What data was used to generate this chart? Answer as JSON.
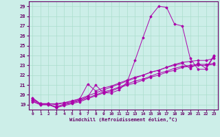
{
  "xlabel": "Windchill (Refroidissement éolien,°C)",
  "background_color": "#cceee8",
  "grid_color": "#aaddcc",
  "line_color": "#aa00aa",
  "xlim": [
    -0.5,
    23.5
  ],
  "ylim": [
    18.5,
    29.5
  ],
  "yticks": [
    19,
    20,
    21,
    22,
    23,
    24,
    25,
    26,
    27,
    28,
    29
  ],
  "xticks": [
    0,
    1,
    2,
    3,
    4,
    5,
    6,
    7,
    8,
    9,
    10,
    11,
    12,
    13,
    14,
    15,
    16,
    17,
    18,
    19,
    20,
    21,
    22,
    23
  ],
  "lines": [
    {
      "x": [
        0,
        1,
        2,
        3,
        4,
        5,
        6,
        7,
        8,
        9,
        10,
        11,
        12,
        13,
        14,
        15,
        16,
        17,
        18,
        19,
        20,
        21,
        22,
        23
      ],
      "y": [
        19.7,
        19.1,
        19.1,
        18.7,
        19.1,
        19.2,
        19.5,
        19.8,
        21.0,
        20.2,
        20.2,
        20.5,
        21.3,
        23.5,
        25.8,
        28.0,
        29.0,
        28.9,
        27.2,
        27.0,
        23.7,
        22.6,
        22.6,
        23.9
      ]
    },
    {
      "x": [
        0,
        1,
        2,
        3,
        4,
        5,
        6,
        7,
        8,
        9,
        10,
        11,
        12,
        13,
        14,
        15,
        16,
        17,
        18,
        19,
        20,
        21,
        22,
        23
      ],
      "y": [
        19.5,
        19.1,
        19.1,
        19.0,
        19.2,
        19.3,
        19.6,
        19.9,
        20.2,
        20.5,
        20.8,
        21.1,
        21.4,
        21.7,
        22.0,
        22.3,
        22.5,
        22.8,
        23.1,
        23.3,
        23.4,
        23.5,
        23.5,
        23.7
      ]
    },
    {
      "x": [
        0,
        1,
        2,
        3,
        4,
        5,
        6,
        7,
        8,
        9,
        10,
        11,
        12,
        13,
        14,
        15,
        16,
        17,
        18,
        19,
        20,
        21,
        22,
        23
      ],
      "y": [
        19.4,
        19.0,
        19.0,
        18.8,
        19.0,
        19.2,
        19.4,
        19.7,
        20.0,
        20.3,
        20.5,
        20.8,
        21.1,
        21.4,
        21.6,
        21.9,
        22.2,
        22.4,
        22.7,
        22.9,
        23.0,
        23.1,
        23.1,
        23.2
      ]
    },
    {
      "x": [
        0,
        1,
        2,
        3,
        4,
        5,
        6,
        7,
        8,
        9,
        10,
        11,
        12,
        13,
        14,
        15,
        16,
        17,
        18,
        19,
        20,
        21,
        22,
        23
      ],
      "y": [
        19.6,
        19.1,
        19.1,
        19.1,
        19.2,
        19.4,
        19.6,
        21.1,
        20.4,
        20.7,
        20.9,
        21.2,
        21.5,
        21.8,
        22.0,
        22.3,
        22.5,
        22.8,
        23.0,
        23.2,
        22.7,
        23.2,
        22.7,
        24.0
      ]
    },
    {
      "x": [
        0,
        1,
        2,
        3,
        4,
        5,
        6,
        7,
        8,
        9,
        10,
        11,
        12,
        13,
        14,
        15,
        16,
        17,
        18,
        19,
        20,
        21,
        22,
        23
      ],
      "y": [
        19.3,
        19.0,
        19.0,
        18.7,
        18.9,
        19.1,
        19.3,
        19.6,
        19.9,
        20.2,
        20.4,
        20.7,
        21.0,
        21.2,
        21.5,
        21.8,
        22.0,
        22.3,
        22.5,
        22.8,
        22.9,
        23.0,
        23.0,
        23.1
      ]
    }
  ]
}
